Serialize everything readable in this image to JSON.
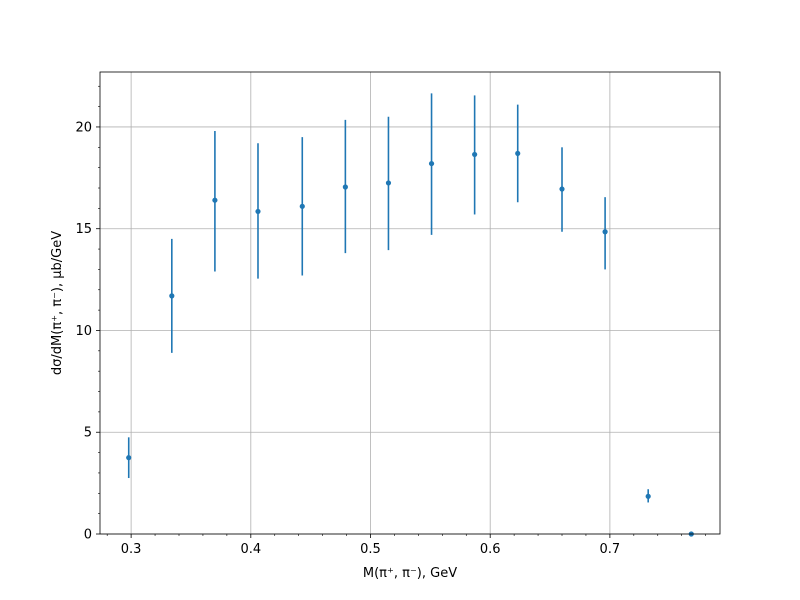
{
  "chart_data": {
    "type": "scatter",
    "title": "",
    "xlabel": "M(π⁺, π⁻), GeV",
    "ylabel": "dσ/dM(π⁺, π⁻), μb/GeV",
    "xlim": [
      0.274,
      0.792
    ],
    "ylim": [
      0,
      22.7
    ],
    "grid": true,
    "x_ticks": [
      0.3,
      0.4,
      0.5,
      0.6,
      0.7
    ],
    "x_tick_labels": [
      "0.3",
      "0.4",
      "0.5",
      "0.6",
      "0.7"
    ],
    "y_ticks": [
      0,
      5,
      10,
      15,
      20
    ],
    "y_tick_labels": [
      "0",
      "5",
      "10",
      "15",
      "20"
    ],
    "color": "#1f77b4",
    "points": [
      {
        "x": 0.298,
        "y": 3.75,
        "yerr_low": 2.75,
        "yerr_high": 4.75
      },
      {
        "x": 0.334,
        "y": 11.7,
        "yerr_low": 8.9,
        "yerr_high": 14.5
      },
      {
        "x": 0.37,
        "y": 16.4,
        "yerr_low": 12.9,
        "yerr_high": 19.8
      },
      {
        "x": 0.406,
        "y": 15.85,
        "yerr_low": 12.55,
        "yerr_high": 19.2
      },
      {
        "x": 0.443,
        "y": 16.1,
        "yerr_low": 12.7,
        "yerr_high": 19.5
      },
      {
        "x": 0.479,
        "y": 17.05,
        "yerr_low": 13.8,
        "yerr_high": 20.35
      },
      {
        "x": 0.515,
        "y": 17.25,
        "yerr_low": 13.95,
        "yerr_high": 20.5
      },
      {
        "x": 0.551,
        "y": 18.2,
        "yerr_low": 14.7,
        "yerr_high": 21.65
      },
      {
        "x": 0.587,
        "y": 18.65,
        "yerr_low": 15.7,
        "yerr_high": 21.55
      },
      {
        "x": 0.623,
        "y": 18.7,
        "yerr_low": 16.3,
        "yerr_high": 21.1
      },
      {
        "x": 0.66,
        "y": 16.95,
        "yerr_low": 14.85,
        "yerr_high": 19.0
      },
      {
        "x": 0.696,
        "y": 14.85,
        "yerr_low": 13.0,
        "yerr_high": 16.55
      },
      {
        "x": 0.732,
        "y": 1.85,
        "yerr_low": 1.55,
        "yerr_high": 2.2
      },
      {
        "x": 0.768,
        "y": 0.0,
        "yerr_low": 0.0,
        "yerr_high": 0.0
      }
    ]
  }
}
